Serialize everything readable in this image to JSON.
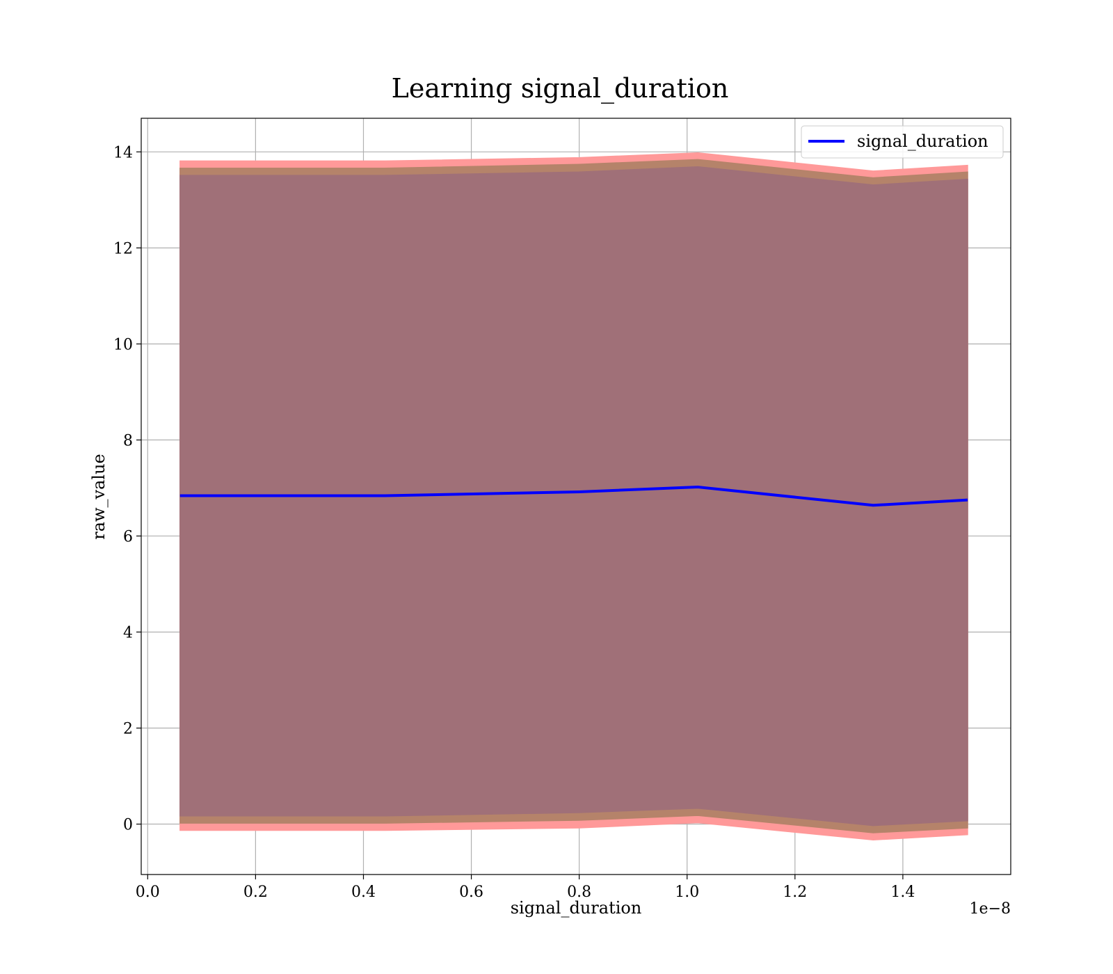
{
  "chart_data": {
    "type": "line",
    "title": "Learning signal_duration",
    "xlabel": "signal_duration",
    "ylabel": "raw_value",
    "x_offset_label": "1e−8",
    "xlim": [
      -0.012,
      1.6
    ],
    "ylim": [
      -1.05,
      14.7
    ],
    "x_ticks": [
      0.0,
      0.2,
      0.4,
      0.6,
      0.8,
      1.0,
      1.2,
      1.4
    ],
    "x_tick_labels": [
      "0.0",
      "0.2",
      "0.4",
      "0.6",
      "0.8",
      "1.0",
      "1.2",
      "1.4"
    ],
    "y_ticks": [
      0,
      2,
      4,
      6,
      8,
      10,
      12,
      14
    ],
    "y_tick_labels": [
      "0",
      "2",
      "4",
      "6",
      "8",
      "10",
      "12",
      "14"
    ],
    "grid": true,
    "legend_position": "top-right",
    "x": [
      0.06,
      0.44,
      0.8,
      1.02,
      1.345,
      1.52
    ],
    "series": [
      {
        "name": "signal_duration",
        "color": "#0000ff",
        "values": [
          6.84,
          6.84,
          6.92,
          7.02,
          6.64,
          6.75
        ]
      }
    ],
    "bands": [
      {
        "color": "#ff9999",
        "lower": [
          -0.13,
          -0.13,
          -0.08,
          0.03,
          -0.33,
          -0.22
        ],
        "upper": [
          13.81,
          13.81,
          13.88,
          13.98,
          13.6,
          13.72
        ]
      },
      {
        "color": "#b5836a",
        "lower": [
          0.02,
          0.02,
          0.08,
          0.18,
          -0.18,
          -0.08
        ],
        "upper": [
          13.66,
          13.66,
          13.74,
          13.84,
          13.46,
          13.58
        ]
      },
      {
        "color": "#a07078",
        "lower": [
          0.17,
          0.17,
          0.24,
          0.33,
          -0.03,
          0.07
        ],
        "upper": [
          13.51,
          13.51,
          13.58,
          13.69,
          13.31,
          13.43
        ]
      }
    ]
  }
}
